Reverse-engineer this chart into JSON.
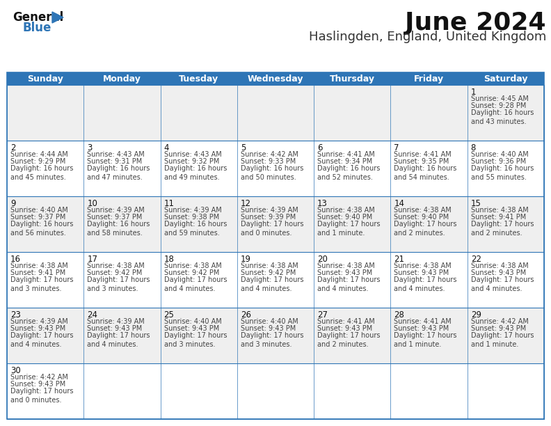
{
  "title": "June 2024",
  "subtitle": "Haslingden, England, United Kingdom",
  "header_bg": "#2e75b6",
  "header_text_color": "#ffffff",
  "day_names": [
    "Sunday",
    "Monday",
    "Tuesday",
    "Wednesday",
    "Thursday",
    "Friday",
    "Saturday"
  ],
  "odd_row_bg": "#efefef",
  "even_row_bg": "#ffffff",
  "border_color": "#2e75b6",
  "cell_text_color": "#444444",
  "date_color": "#111111",
  "calendar": [
    [
      null,
      null,
      null,
      null,
      null,
      null,
      {
        "day": "1",
        "sunrise": "4:45 AM",
        "sunset": "9:28 PM",
        "daylight": "16 hours\nand 43 minutes."
      }
    ],
    [
      {
        "day": "2",
        "sunrise": "4:44 AM",
        "sunset": "9:29 PM",
        "daylight": "16 hours\nand 45 minutes."
      },
      {
        "day": "3",
        "sunrise": "4:43 AM",
        "sunset": "9:31 PM",
        "daylight": "16 hours\nand 47 minutes."
      },
      {
        "day": "4",
        "sunrise": "4:43 AM",
        "sunset": "9:32 PM",
        "daylight": "16 hours\nand 49 minutes."
      },
      {
        "day": "5",
        "sunrise": "4:42 AM",
        "sunset": "9:33 PM",
        "daylight": "16 hours\nand 50 minutes."
      },
      {
        "day": "6",
        "sunrise": "4:41 AM",
        "sunset": "9:34 PM",
        "daylight": "16 hours\nand 52 minutes."
      },
      {
        "day": "7",
        "sunrise": "4:41 AM",
        "sunset": "9:35 PM",
        "daylight": "16 hours\nand 54 minutes."
      },
      {
        "day": "8",
        "sunrise": "4:40 AM",
        "sunset": "9:36 PM",
        "daylight": "16 hours\nand 55 minutes."
      }
    ],
    [
      {
        "day": "9",
        "sunrise": "4:40 AM",
        "sunset": "9:37 PM",
        "daylight": "16 hours\nand 56 minutes."
      },
      {
        "day": "10",
        "sunrise": "4:39 AM",
        "sunset": "9:37 PM",
        "daylight": "16 hours\nand 58 minutes."
      },
      {
        "day": "11",
        "sunrise": "4:39 AM",
        "sunset": "9:38 PM",
        "daylight": "16 hours\nand 59 minutes."
      },
      {
        "day": "12",
        "sunrise": "4:39 AM",
        "sunset": "9:39 PM",
        "daylight": "17 hours\nand 0 minutes."
      },
      {
        "day": "13",
        "sunrise": "4:38 AM",
        "sunset": "9:40 PM",
        "daylight": "17 hours\nand 1 minute."
      },
      {
        "day": "14",
        "sunrise": "4:38 AM",
        "sunset": "9:40 PM",
        "daylight": "17 hours\nand 2 minutes."
      },
      {
        "day": "15",
        "sunrise": "4:38 AM",
        "sunset": "9:41 PM",
        "daylight": "17 hours\nand 2 minutes."
      }
    ],
    [
      {
        "day": "16",
        "sunrise": "4:38 AM",
        "sunset": "9:41 PM",
        "daylight": "17 hours\nand 3 minutes."
      },
      {
        "day": "17",
        "sunrise": "4:38 AM",
        "sunset": "9:42 PM",
        "daylight": "17 hours\nand 3 minutes."
      },
      {
        "day": "18",
        "sunrise": "4:38 AM",
        "sunset": "9:42 PM",
        "daylight": "17 hours\nand 4 minutes."
      },
      {
        "day": "19",
        "sunrise": "4:38 AM",
        "sunset": "9:42 PM",
        "daylight": "17 hours\nand 4 minutes."
      },
      {
        "day": "20",
        "sunrise": "4:38 AM",
        "sunset": "9:43 PM",
        "daylight": "17 hours\nand 4 minutes."
      },
      {
        "day": "21",
        "sunrise": "4:38 AM",
        "sunset": "9:43 PM",
        "daylight": "17 hours\nand 4 minutes."
      },
      {
        "day": "22",
        "sunrise": "4:38 AM",
        "sunset": "9:43 PM",
        "daylight": "17 hours\nand 4 minutes."
      }
    ],
    [
      {
        "day": "23",
        "sunrise": "4:39 AM",
        "sunset": "9:43 PM",
        "daylight": "17 hours\nand 4 minutes."
      },
      {
        "day": "24",
        "sunrise": "4:39 AM",
        "sunset": "9:43 PM",
        "daylight": "17 hours\nand 4 minutes."
      },
      {
        "day": "25",
        "sunrise": "4:40 AM",
        "sunset": "9:43 PM",
        "daylight": "17 hours\nand 3 minutes."
      },
      {
        "day": "26",
        "sunrise": "4:40 AM",
        "sunset": "9:43 PM",
        "daylight": "17 hours\nand 3 minutes."
      },
      {
        "day": "27",
        "sunrise": "4:41 AM",
        "sunset": "9:43 PM",
        "daylight": "17 hours\nand 2 minutes."
      },
      {
        "day": "28",
        "sunrise": "4:41 AM",
        "sunset": "9:43 PM",
        "daylight": "17 hours\nand 1 minute."
      },
      {
        "day": "29",
        "sunrise": "4:42 AM",
        "sunset": "9:43 PM",
        "daylight": "17 hours\nand 1 minute."
      }
    ],
    [
      {
        "day": "30",
        "sunrise": "4:42 AM",
        "sunset": "9:43 PM",
        "daylight": "17 hours\nand 0 minutes."
      },
      null,
      null,
      null,
      null,
      null,
      null
    ]
  ],
  "figsize": [
    7.92,
    6.12
  ],
  "dpi": 100
}
